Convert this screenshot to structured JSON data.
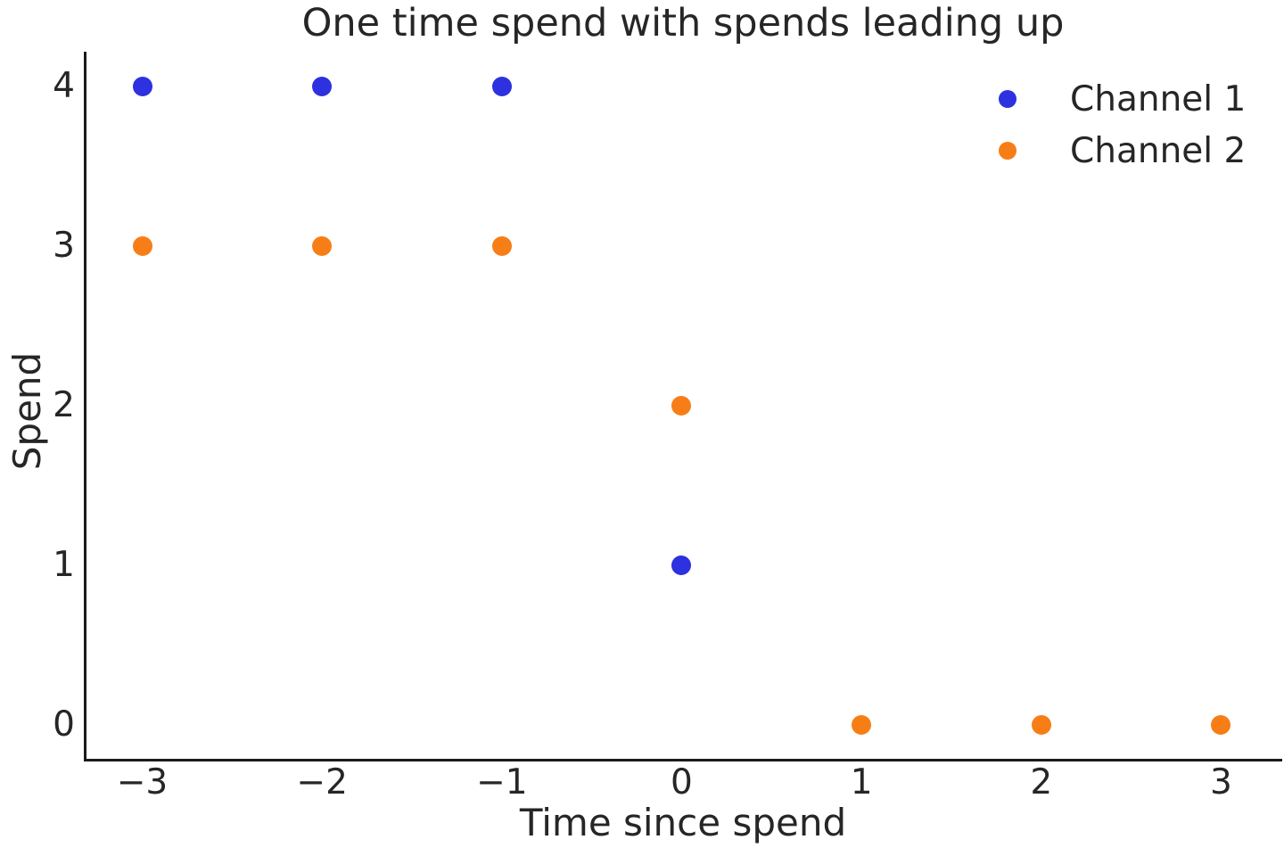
{
  "chart_data": {
    "type": "scatter",
    "title": "One time spend with spends leading up",
    "xlabel": "Time since spend",
    "ylabel": "Spend",
    "xlim": [
      -3.31,
      3.34
    ],
    "ylim": [
      -0.21,
      4.22
    ],
    "x_ticks": [
      -3,
      -2,
      -1,
      0,
      1,
      2,
      3
    ],
    "x_tick_labels": [
      "−3",
      "−2",
      "−1",
      "0",
      "1",
      "2",
      "3"
    ],
    "y_ticks": [
      0,
      1,
      2,
      3,
      4
    ],
    "y_tick_labels": [
      "0",
      "1",
      "2",
      "3",
      "4"
    ],
    "grid": false,
    "tick_marks": false,
    "legend_position": "upper right",
    "axis_color": "#1a1a1a",
    "text_color": "#262626",
    "background_color": "#ffffff",
    "series": [
      {
        "name": "Channel 1",
        "color": "#2d31df",
        "marker": "circle",
        "points": [
          {
            "x": -3,
            "y": 4
          },
          {
            "x": -2,
            "y": 4
          },
          {
            "x": -1,
            "y": 4
          },
          {
            "x": 0,
            "y": 1
          }
        ]
      },
      {
        "name": "Channel 2",
        "color": "#f77e17",
        "marker": "circle",
        "points": [
          {
            "x": -3,
            "y": 3
          },
          {
            "x": -2,
            "y": 3
          },
          {
            "x": -1,
            "y": 3
          },
          {
            "x": 0,
            "y": 2
          },
          {
            "x": 1,
            "y": 0
          },
          {
            "x": 2,
            "y": 0
          },
          {
            "x": 3,
            "y": 0
          }
        ]
      }
    ]
  }
}
